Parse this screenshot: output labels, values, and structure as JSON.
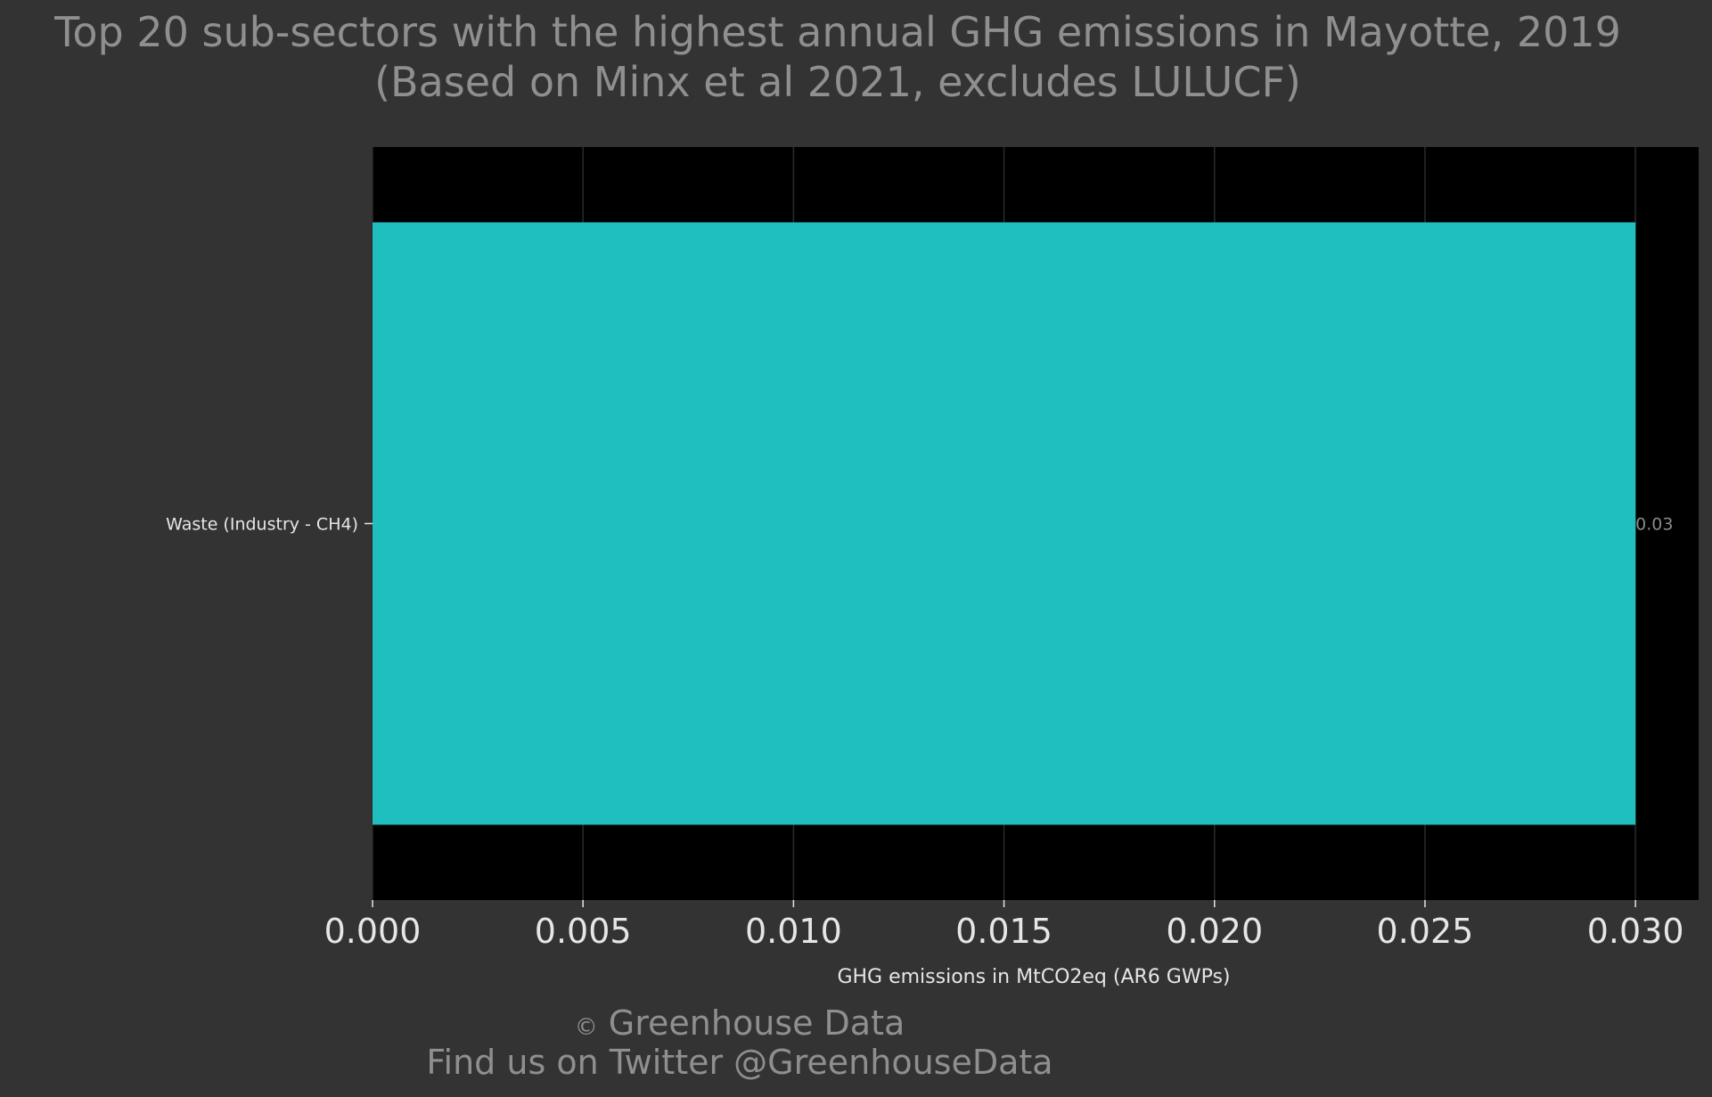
{
  "chart_data": {
    "type": "bar",
    "orientation": "horizontal",
    "title": "Top 20 sub-sectors with the highest annual GHG emissions in Mayotte, 2019",
    "subtitle": "(Based on Minx et al 2021, excludes LULUCF)",
    "categories": [
      "Waste (Industry - CH4)"
    ],
    "values": [
      0.03
    ],
    "data_labels": [
      "0.03"
    ],
    "xlabel": "GHG emissions in MtCO2eq (AR6 GWPs)",
    "ylabel": "",
    "xlim": [
      0,
      0.0315
    ],
    "xticks": [
      0,
      0.005,
      0.01,
      0.015,
      0.02,
      0.025,
      0.03
    ],
    "xtick_labels": [
      "0.000",
      "0.005",
      "0.010",
      "0.015",
      "0.020",
      "0.025",
      "0.030"
    ],
    "grid": true,
    "legend": "none",
    "colors": {
      "bar": "#1fbfbf",
      "panel": "#000000",
      "background": "#333333",
      "grid": "#2a2a2a",
      "title_text": "#8f8f8f",
      "axis_text": "#e6e6e6"
    }
  },
  "footer": {
    "copyright_symbol": "©",
    "line1": "Greenhouse Data",
    "line2": "Find us on Twitter @GreenhouseData"
  }
}
